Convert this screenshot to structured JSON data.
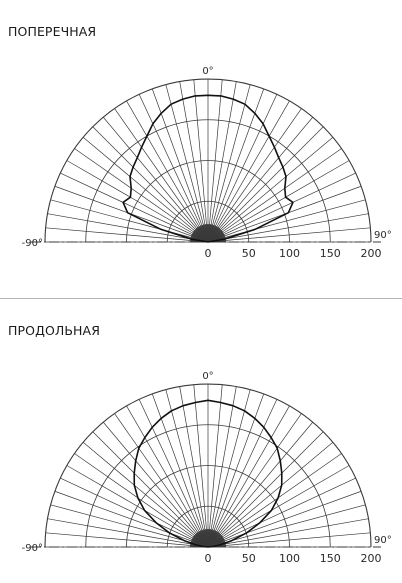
{
  "colors": {
    "grid": "#3a3a3a",
    "curve": "#111111",
    "text": "#2a2a2a"
  },
  "chart_data": [
    {
      "type": "polar",
      "title": "ПОПЕРЕЧНАЯ",
      "angle_range": [
        -90,
        90
      ],
      "angle_step": 5,
      "r_max": 200,
      "rings": [
        50,
        100,
        150,
        200
      ],
      "r_tick_labels": [
        "0",
        "50",
        "100",
        "150",
        "200"
      ],
      "angle_labels": {
        "left": "-90°",
        "top": "0°",
        "right": "90°"
      },
      "series": [
        {
          "angles": [
            -90,
            -80,
            -75,
            -70,
            -65,
            -60,
            -55,
            -50,
            -45,
            -40,
            -35,
            -30,
            -25,
            -20,
            -15,
            -10,
            -5,
            0,
            5,
            10,
            15,
            20,
            25,
            30,
            35,
            40,
            45,
            50,
            55,
            60,
            65,
            70,
            75,
            80,
            90
          ],
          "values": [
            0,
            20,
            60,
            105,
            115,
            110,
            115,
            125,
            130,
            135,
            142,
            150,
            160,
            168,
            175,
            178,
            180,
            180,
            180,
            178,
            175,
            168,
            160,
            150,
            142,
            135,
            130,
            125,
            115,
            110,
            115,
            105,
            60,
            20,
            0
          ]
        }
      ]
    },
    {
      "type": "polar",
      "title": "ПРОДОЛЬНАЯ",
      "angle_range": [
        -90,
        90
      ],
      "angle_step": 5,
      "r_max": 200,
      "rings": [
        50,
        100,
        150,
        200
      ],
      "r_tick_labels": [
        "0",
        "50",
        "100",
        "150",
        "200"
      ],
      "angle_labels": {
        "left": "-90°",
        "top": "0°",
        "right": "90°"
      },
      "series": [
        {
          "angles": [
            -90,
            -85,
            -80,
            -75,
            -70,
            -65,
            -60,
            -55,
            -50,
            -45,
            -40,
            -35,
            -30,
            -25,
            -20,
            -15,
            -10,
            -5,
            0,
            5,
            10,
            15,
            20,
            25,
            30,
            35,
            40,
            45,
            50,
            55,
            60,
            65,
            70,
            75,
            80,
            85,
            90
          ],
          "values": [
            0,
            5,
            15,
            30,
            50,
            70,
            90,
            105,
            118,
            128,
            138,
            148,
            155,
            162,
            168,
            173,
            176,
            178,
            180,
            178,
            176,
            173,
            168,
            162,
            155,
            148,
            138,
            128,
            118,
            105,
            90,
            70,
            50,
            30,
            15,
            5,
            0
          ]
        }
      ]
    }
  ]
}
